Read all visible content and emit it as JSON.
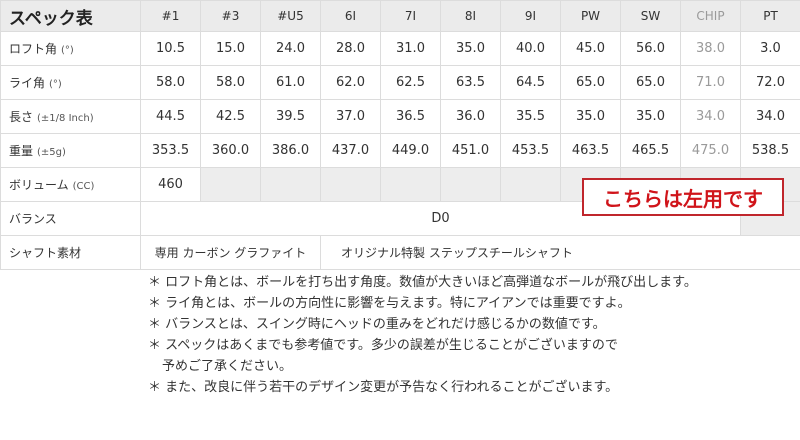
{
  "table": {
    "title": "スペック表",
    "columns": [
      "#1",
      "#3",
      "#U5",
      "6I",
      "7I",
      "8I",
      "9I",
      "PW",
      "SW",
      "CHIP",
      "PT"
    ],
    "rows": [
      {
        "label": "ロフト角",
        "unit": "(°)",
        "values": [
          "10.5",
          "15.0",
          "24.0",
          "28.0",
          "31.0",
          "35.0",
          "40.0",
          "45.0",
          "56.0",
          "38.0",
          "3.0"
        ]
      },
      {
        "label": "ライ角",
        "unit": "(°)",
        "values": [
          "58.0",
          "58.0",
          "61.0",
          "62.0",
          "62.5",
          "63.5",
          "64.5",
          "65.0",
          "65.0",
          "71.0",
          "72.0"
        ]
      },
      {
        "label": "長さ",
        "unit": "(±1/8 Inch)",
        "values": [
          "44.5",
          "42.5",
          "39.5",
          "37.0",
          "36.5",
          "36.0",
          "35.5",
          "35.0",
          "35.0",
          "34.0",
          "34.0"
        ]
      },
      {
        "label": "重量",
        "unit": "(±5g)",
        "values": [
          "353.5",
          "360.0",
          "386.0",
          "437.0",
          "449.0",
          "451.0",
          "453.5",
          "463.5",
          "465.5",
          "475.0",
          "538.5"
        ]
      }
    ],
    "volume": {
      "label": "ボリューム",
      "unit": "(CC)",
      "value": "460"
    },
    "balance": {
      "label": "バランス",
      "value": "D0"
    },
    "shaft": {
      "label": "シャフト素材",
      "driver": "専用 カーボン グラファイト",
      "others": "オリジナル特製 ステップスチールシャフト"
    }
  },
  "badge": {
    "text": "こちらは左用です",
    "color": "#d0141a"
  },
  "notes": [
    "＊ ロフト角とは、ボールを打ち出す角度。数値が大きいほど高弾道なボールが飛び出します。",
    "＊ ライ角とは、ボールの方向性に影響を与えます。特にアイアンでは重要ですよ。",
    "＊ バランスとは、スイング時にヘッドの重みをどれだけ感じるかの数値です。",
    "＊ スペックはあくまでも参考値です。多少の誤差が生じることがございますので",
    "予めご了承ください。",
    "＊ また、改良に伴う若干のデザイン変更が予告なく行われることがございます。"
  ]
}
